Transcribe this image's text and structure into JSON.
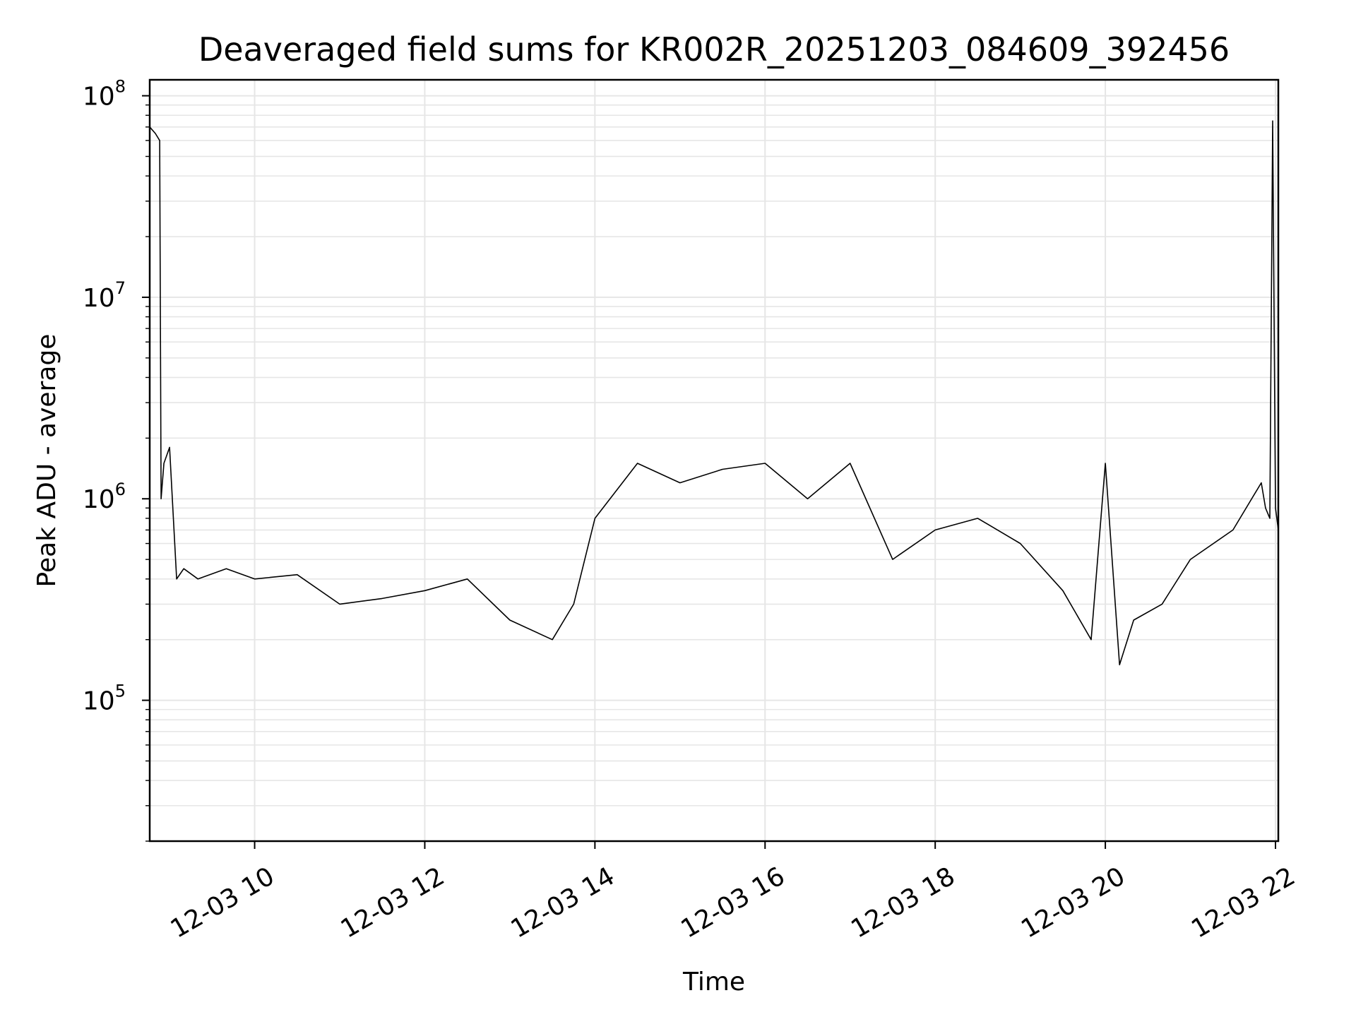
{
  "chart_data": {
    "type": "line",
    "title": "Deaveraged field sums for KR002R_20251203_084609_392456",
    "xlabel": "Time",
    "ylabel": "Peak ADU - average",
    "yscale": "log",
    "ylim": [
      20000,
      120000000
    ],
    "xlim": [
      "2025-12-03 08:46",
      "2025-12-03 22:02"
    ],
    "grid": true,
    "line_color": "#000000",
    "grid_color": "#e6e6e6",
    "x_tick_labels": [
      "12-03 10",
      "12-03 12",
      "12-03 14",
      "12-03 16",
      "12-03 18",
      "12-03 20",
      "12-03 22"
    ],
    "x_tick_values": [
      "2025-12-03 10:00",
      "2025-12-03 12:00",
      "2025-12-03 14:00",
      "2025-12-03 16:00",
      "2025-12-03 18:00",
      "2025-12-03 20:00",
      "2025-12-03 22:00"
    ],
    "y_tick_labels": [
      {
        "base": "10",
        "exp": "5",
        "value": 100000
      },
      {
        "base": "10",
        "exp": "6",
        "value": 1000000
      },
      {
        "base": "10",
        "exp": "7",
        "value": 10000000
      },
      {
        "base": "10",
        "exp": "8",
        "value": 100000000
      }
    ],
    "series": [
      {
        "x": [
          "2025-12-03 08:46",
          "2025-12-03 08:50",
          "2025-12-03 08:53",
          "2025-12-03 08:54",
          "2025-12-03 08:56",
          "2025-12-03 09:00",
          "2025-12-03 09:05",
          "2025-12-03 09:10",
          "2025-12-03 09:20",
          "2025-12-03 09:40",
          "2025-12-03 10:00",
          "2025-12-03 10:30",
          "2025-12-03 11:00",
          "2025-12-03 11:30",
          "2025-12-03 12:00",
          "2025-12-03 12:30",
          "2025-12-03 13:00",
          "2025-12-03 13:30",
          "2025-12-03 13:45",
          "2025-12-03 14:00",
          "2025-12-03 14:30",
          "2025-12-03 15:00",
          "2025-12-03 15:30",
          "2025-12-03 16:00",
          "2025-12-03 16:30",
          "2025-12-03 17:00",
          "2025-12-03 17:30",
          "2025-12-03 18:00",
          "2025-12-03 18:30",
          "2025-12-03 19:00",
          "2025-12-03 19:30",
          "2025-12-03 19:50",
          "2025-12-03 20:00",
          "2025-12-03 20:10",
          "2025-12-03 20:20",
          "2025-12-03 20:40",
          "2025-12-03 21:00",
          "2025-12-03 21:30",
          "2025-12-03 21:50",
          "2025-12-03 21:53",
          "2025-12-03 21:56",
          "2025-12-03 21:58",
          "2025-12-03 22:00",
          "2025-12-03 22:02"
        ],
        "values": [
          70000000,
          65000000,
          60000000,
          1000000,
          1500000,
          1800000,
          400000,
          450000,
          400000,
          450000,
          400000,
          420000,
          300000,
          320000,
          350000,
          400000,
          250000,
          200000,
          300000,
          800000,
          1500000,
          1200000,
          1400000,
          1500000,
          1000000,
          1500000,
          500000,
          700000,
          800000,
          600000,
          350000,
          200000,
          1500000,
          150000,
          250000,
          300000,
          500000,
          700000,
          1200000,
          900000,
          800000,
          75000000,
          900000,
          700000
        ]
      }
    ]
  }
}
